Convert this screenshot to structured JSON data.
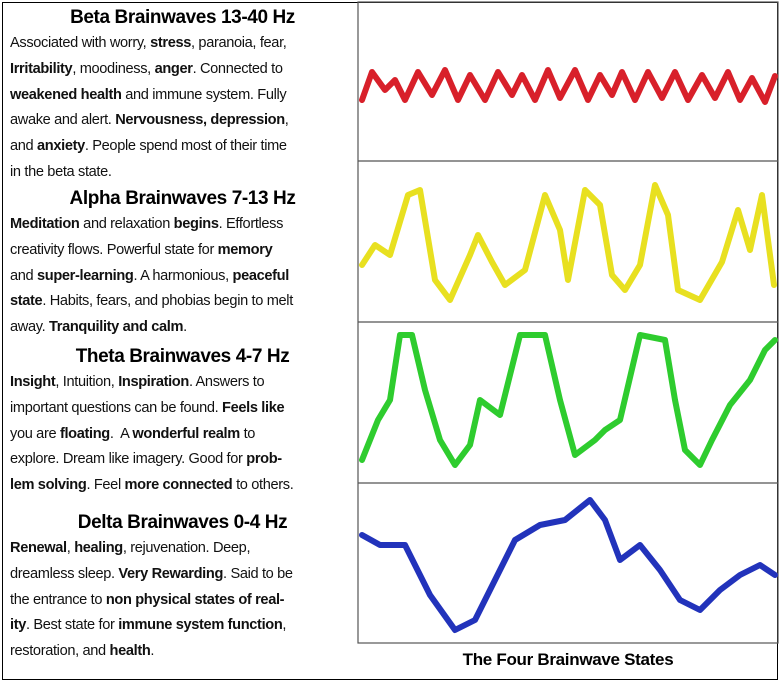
{
  "sections": [
    {
      "title": "Beta Brainwaves 13-40 Hz",
      "lines": [
        [
          {
            "text": "Associated with worry, "
          },
          {
            "text": "stress",
            "bold": true
          },
          {
            "text": ", paranoia, fear,"
          }
        ],
        [
          {
            "text": "Irritability",
            "bold": true
          },
          {
            "text": ", moodiness, "
          },
          {
            "text": "anger",
            "bold": true
          },
          {
            "text": ". Connected to"
          }
        ],
        [
          {
            "text": "weakened health",
            "bold": true
          },
          {
            "text": " and immune system. Fully"
          }
        ],
        [
          {
            "text": "awake and alert. "
          },
          {
            "text": "Nervousness, depression",
            "bold": true
          },
          {
            "text": ","
          }
        ],
        [
          {
            "text": "and "
          },
          {
            "text": "anxiety",
            "bold": true
          },
          {
            "text": ". People spend most of their time"
          }
        ],
        [
          {
            "text": "in the beta state."
          }
        ]
      ]
    },
    {
      "title": "Alpha Brainwaves 7-13 Hz",
      "lines": [
        [
          {
            "text": "Meditation",
            "bold": true
          },
          {
            "text": " and relaxation "
          },
          {
            "text": "begins",
            "bold": true
          },
          {
            "text": ". Effortless"
          }
        ],
        [
          {
            "text": "creativity flows. Powerful state for "
          },
          {
            "text": "memory",
            "bold": true
          }
        ],
        [
          {
            "text": "and "
          },
          {
            "text": "super-learning",
            "bold": true
          },
          {
            "text": ". A harmonious, "
          },
          {
            "text": "peaceful",
            "bold": true
          }
        ],
        [
          {
            "text": "state",
            "bold": true
          },
          {
            "text": ". Habits, fears, and phobias begin to melt"
          }
        ],
        [
          {
            "text": "away. "
          },
          {
            "text": "Tranquility and calm",
            "bold": true
          },
          {
            "text": "."
          }
        ]
      ]
    },
    {
      "title": "Theta Brainwaves 4-7 Hz",
      "lines": [
        [
          {
            "text": "Insight",
            "bold": true
          },
          {
            "text": ", Intuition, "
          },
          {
            "text": "Inspiration",
            "bold": true
          },
          {
            "text": ". Answers to"
          }
        ],
        [
          {
            "text": "important questions can be found. "
          },
          {
            "text": "Feels like",
            "bold": true
          }
        ],
        [
          {
            "text": "you are "
          },
          {
            "text": "floating",
            "bold": true
          },
          {
            "text": ".  A "
          },
          {
            "text": "wonderful realm",
            "bold": true
          },
          {
            "text": " to"
          }
        ],
        [
          {
            "text": "explore. Dream like imagery. Good for "
          },
          {
            "text": "prob-",
            "bold": true
          }
        ],
        [
          {
            "text": "lem solving",
            "bold": true
          },
          {
            "text": ". Feel "
          },
          {
            "text": "more connected",
            "bold": true
          },
          {
            "text": " to others."
          }
        ]
      ]
    },
    {
      "title": "Delta Brainwaves 0-4 Hz",
      "lines": [
        [
          {
            "text": "Renewal",
            "bold": true
          },
          {
            "text": ", "
          },
          {
            "text": "healing",
            "bold": true
          },
          {
            "text": ", rejuvenation. Deep,"
          }
        ],
        [
          {
            "text": "dreamless sleep. "
          },
          {
            "text": "Very Rewarding",
            "bold": true
          },
          {
            "text": ". Said to be"
          }
        ],
        [
          {
            "text": "the entrance to "
          },
          {
            "text": "non physical states of real-",
            "bold": true
          }
        ],
        [
          {
            "text": "ity",
            "bold": true
          },
          {
            "text": ". Best state for "
          },
          {
            "text": "immune system function",
            "bold": true
          },
          {
            "text": ","
          }
        ],
        [
          {
            "text": "restoration, and "
          },
          {
            "text": "health",
            "bold": true
          },
          {
            "text": "."
          }
        ]
      ]
    }
  ],
  "caption": "The Four Brainwave States"
}
